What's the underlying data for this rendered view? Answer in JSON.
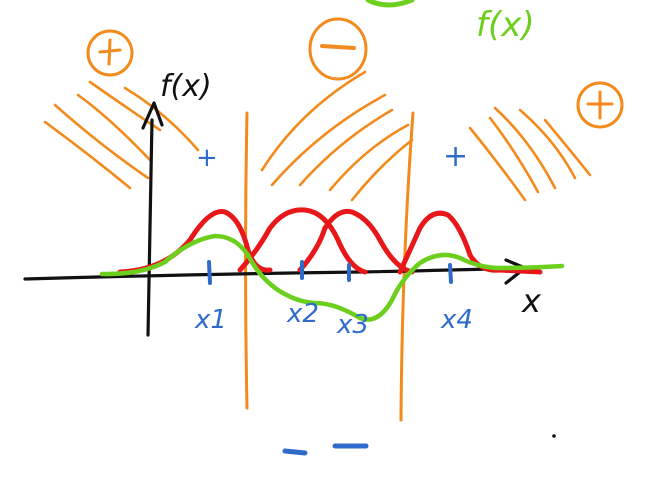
{
  "labels": {
    "y_axis": "f(x)",
    "x_axis": "x",
    "green_curve": "f(x)",
    "x1": "x1",
    "x2": "x2",
    "x3": "x3",
    "x4": "x4",
    "sign_left": "+",
    "sign_middle": "−",
    "sign_right": "+",
    "plus_mark_left": "+",
    "plus_mark_right": "+"
  },
  "colors": {
    "axis": "#111111",
    "region": "#f28a1c",
    "gaussians": "#e8181a",
    "sum_curve": "#6ccf1e",
    "markers": "#2f6bcb"
  }
}
